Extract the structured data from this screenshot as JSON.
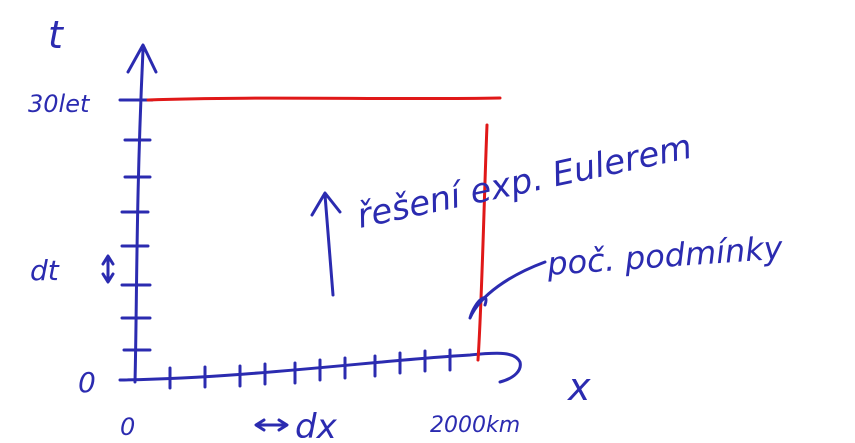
{
  "axes": {
    "t_label": "t",
    "t_top": "30let",
    "t_zero": "0",
    "dt": "dt",
    "x_label": "x",
    "x_zero": "0",
    "dx": "dx",
    "x_end": "2000km"
  },
  "annotations": {
    "solution": "řešení exp. Eulerem",
    "initial": "poč. podmínky"
  }
}
